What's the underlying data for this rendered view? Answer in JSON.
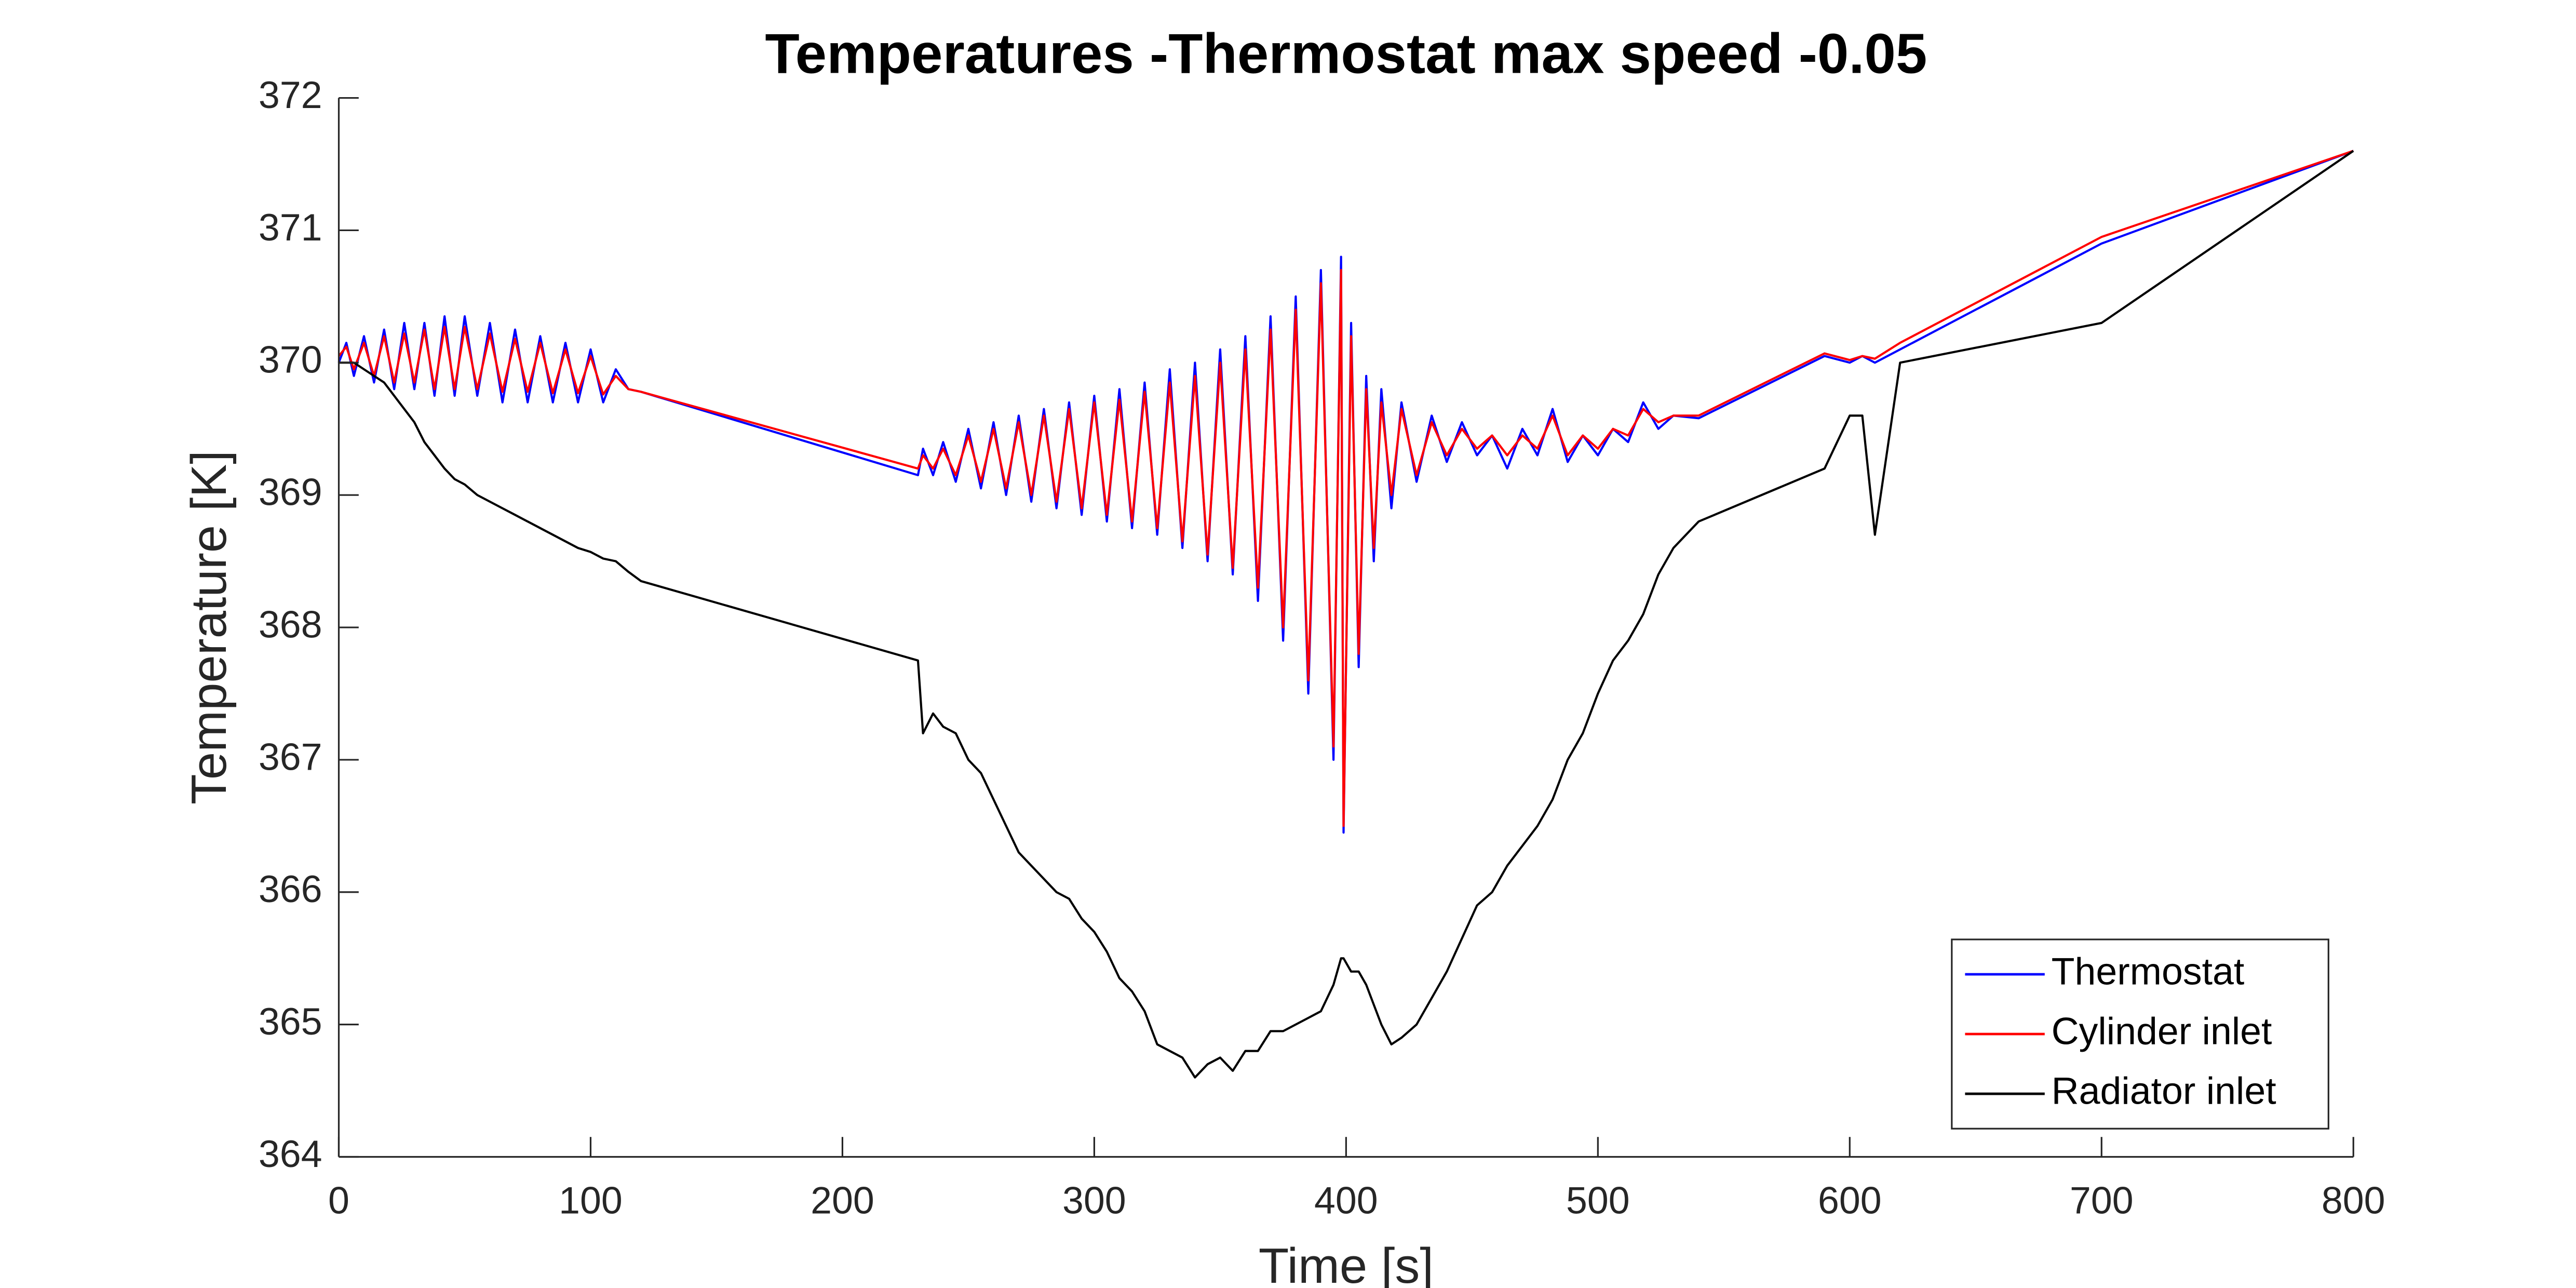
{
  "chart_data": {
    "type": "line",
    "title": "Temperatures -Thermostat max speed -0.05",
    "x_label": "Time [s]",
    "y_label": "Temperature [K]",
    "x": [
      0,
      3,
      6,
      10,
      14,
      18,
      22,
      26,
      30,
      34,
      38,
      42,
      46,
      50,
      55,
      60,
      65,
      70,
      75,
      80,
      85,
      90,
      95,
      100,
      105,
      110,
      115,
      120,
      230,
      232,
      236,
      240,
      245,
      250,
      255,
      260,
      265,
      270,
      275,
      280,
      285,
      290,
      295,
      300,
      305,
      310,
      315,
      320,
      325,
      330,
      335,
      340,
      345,
      350,
      355,
      360,
      365,
      370,
      375,
      380,
      385,
      390,
      395,
      398,
      399,
      402,
      405,
      408,
      411,
      414,
      418,
      422,
      428,
      434,
      440,
      446,
      452,
      458,
      464,
      470,
      476,
      482,
      488,
      494,
      500,
      506,
      512,
      518,
      524,
      530,
      540,
      590,
      600,
      605,
      610,
      620,
      700,
      800
    ],
    "series": [
      {
        "name": "Thermostat",
        "color": "#0000ff",
        "values": [
          370.0,
          370.15,
          369.9,
          370.2,
          369.85,
          370.25,
          369.8,
          370.3,
          369.8,
          370.3,
          369.75,
          370.35,
          369.75,
          370.35,
          369.75,
          370.3,
          369.7,
          370.25,
          369.7,
          370.2,
          369.7,
          370.15,
          369.7,
          370.1,
          369.7,
          369.95,
          369.8,
          369.78,
          369.15,
          369.35,
          369.15,
          369.4,
          369.1,
          369.5,
          369.05,
          369.55,
          369.0,
          369.6,
          368.95,
          369.65,
          368.9,
          369.7,
          368.85,
          369.75,
          368.8,
          369.8,
          368.75,
          369.85,
          368.7,
          369.95,
          368.6,
          370.0,
          368.5,
          370.1,
          368.4,
          370.2,
          368.2,
          370.35,
          367.9,
          370.5,
          367.5,
          370.7,
          367.0,
          370.8,
          366.45,
          370.3,
          367.7,
          369.9,
          368.5,
          369.8,
          368.9,
          369.7,
          369.1,
          369.6,
          369.25,
          369.55,
          369.3,
          369.45,
          369.2,
          369.5,
          369.3,
          369.65,
          369.25,
          369.45,
          369.3,
          369.5,
          369.4,
          369.7,
          369.5,
          369.6,
          369.58,
          370.05,
          370.0,
          370.05,
          370.0,
          370.1,
          370.9,
          371.6
        ]
      },
      {
        "name": "Cylinder inlet",
        "color": "#ff0000",
        "values": [
          370.05,
          370.12,
          369.95,
          370.15,
          369.9,
          370.2,
          369.85,
          370.22,
          369.85,
          370.25,
          369.8,
          370.27,
          369.8,
          370.27,
          369.8,
          370.22,
          369.78,
          370.18,
          369.78,
          370.15,
          369.77,
          370.1,
          369.77,
          370.05,
          369.76,
          369.9,
          369.8,
          369.78,
          369.2,
          369.3,
          369.2,
          369.35,
          369.15,
          369.45,
          369.1,
          369.5,
          369.05,
          369.55,
          369.0,
          369.6,
          368.95,
          369.65,
          368.9,
          369.7,
          368.85,
          369.72,
          368.8,
          369.78,
          368.75,
          369.85,
          368.65,
          369.9,
          368.55,
          370.0,
          368.45,
          370.1,
          368.3,
          370.25,
          368.0,
          370.4,
          367.6,
          370.6,
          367.1,
          370.7,
          366.5,
          370.2,
          367.8,
          369.8,
          368.6,
          369.7,
          369.0,
          369.65,
          369.15,
          369.55,
          369.3,
          369.5,
          369.35,
          369.45,
          369.3,
          369.45,
          369.35,
          369.6,
          369.3,
          369.45,
          369.35,
          369.5,
          369.45,
          369.65,
          369.55,
          369.6,
          369.6,
          370.07,
          370.02,
          370.05,
          370.03,
          370.15,
          370.95,
          371.6
        ]
      },
      {
        "name": "Radiator inlet",
        "color": "#000000",
        "values": [
          370.0,
          370.0,
          370.0,
          369.95,
          369.9,
          369.85,
          369.75,
          369.65,
          369.55,
          369.4,
          369.3,
          369.2,
          369.12,
          369.08,
          369.0,
          368.95,
          368.9,
          368.85,
          368.8,
          368.75,
          368.7,
          368.65,
          368.6,
          368.57,
          368.52,
          368.5,
          368.42,
          368.35,
          367.75,
          367.2,
          367.35,
          367.25,
          367.2,
          367.0,
          366.9,
          366.7,
          366.5,
          366.3,
          366.2,
          366.1,
          366.0,
          365.95,
          365.8,
          365.7,
          365.55,
          365.35,
          365.25,
          365.1,
          364.85,
          364.8,
          364.75,
          364.6,
          364.7,
          364.75,
          364.65,
          364.8,
          364.8,
          364.95,
          364.95,
          365.0,
          365.05,
          365.1,
          365.3,
          365.5,
          365.5,
          365.4,
          365.4,
          365.3,
          365.15,
          365.0,
          364.85,
          364.9,
          365.0,
          365.2,
          365.4,
          365.65,
          365.9,
          366.0,
          366.2,
          366.35,
          366.5,
          366.7,
          367.0,
          367.2,
          367.5,
          367.75,
          367.9,
          368.1,
          368.4,
          368.6,
          368.8,
          369.2,
          369.6,
          369.6,
          368.7,
          370.0,
          370.3,
          371.6
        ]
      }
    ],
    "xlim": [
      0,
      800
    ],
    "xticks": [
      0,
      100,
      200,
      300,
      400,
      500,
      600,
      700,
      800
    ],
    "ylim": [
      364,
      372
    ],
    "yticks": [
      364,
      365,
      366,
      367,
      368,
      369,
      370,
      371,
      372
    ],
    "legend": "lower right"
  }
}
